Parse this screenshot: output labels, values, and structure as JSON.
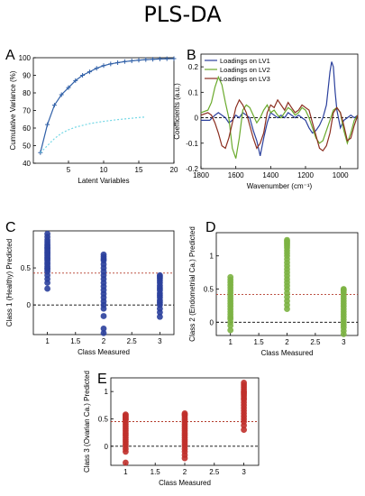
{
  "page_title": "PLS-DA",
  "chart_data": [
    {
      "panel": "A",
      "type": "line",
      "xlabel": "Latent Variables",
      "ylabel": "Cumulative Variance (%)",
      "xlim": [
        0,
        20
      ],
      "ylim": [
        40,
        100
      ],
      "xticks": [
        5,
        10,
        15,
        20
      ],
      "yticks": [
        40,
        50,
        60,
        70,
        80,
        90,
        100
      ],
      "grid": false,
      "series": [
        {
          "color": "#2f5fa7",
          "marker": "+",
          "x": [
            1,
            2,
            3,
            4,
            5,
            6,
            7,
            8,
            9,
            10,
            11,
            12,
            13,
            14,
            15,
            16,
            17,
            18,
            19,
            20
          ],
          "y": [
            46,
            62,
            73,
            79,
            83,
            87,
            90,
            92,
            94,
            95.5,
            96.5,
            97.2,
            97.8,
            98.2,
            98.6,
            98.9,
            99.1,
            99.3,
            99.4,
            99.5
          ]
        },
        {
          "color": "#74d8e6",
          "style": "dashed",
          "x": [
            1,
            2,
            3,
            4,
            5,
            6,
            7,
            8,
            9,
            10,
            11,
            12,
            13,
            14,
            15,
            16
          ],
          "y": [
            46,
            50,
            54,
            57,
            59,
            60.5,
            61.5,
            62.5,
            63.2,
            63.8,
            64.3,
            64.8,
            65.2,
            65.6,
            66,
            66.3
          ]
        }
      ]
    },
    {
      "panel": "B",
      "type": "line",
      "xlabel": "Wavenumber (cm⁻¹)",
      "ylabel": "Coefficients (a.u.)",
      "xlim": [
        1800,
        900
      ],
      "ylim": [
        -0.2,
        0.25
      ],
      "xticks": [
        1800,
        1600,
        1400,
        1200,
        1000
      ],
      "yticks": [
        -0.2,
        -0.1,
        0,
        0.1,
        0.2
      ],
      "legend_position": "top-left",
      "grid": false,
      "series": [
        {
          "name": "Loadings on LV1",
          "color": "#2a3f9c",
          "x": [
            1800,
            1750,
            1720,
            1700,
            1680,
            1660,
            1640,
            1620,
            1600,
            1580,
            1560,
            1540,
            1520,
            1500,
            1480,
            1460,
            1440,
            1420,
            1400,
            1380,
            1360,
            1340,
            1320,
            1300,
            1280,
            1260,
            1240,
            1220,
            1200,
            1180,
            1160,
            1140,
            1120,
            1100,
            1080,
            1060,
            1050,
            1040,
            1030,
            1020,
            1000,
            980,
            960,
            940,
            920,
            900
          ],
          "y": [
            -0.01,
            -0.01,
            0.01,
            0.02,
            0.01,
            0,
            -0.02,
            -0.01,
            0.01,
            0,
            0.02,
            0.01,
            0,
            -0.05,
            -0.09,
            -0.15,
            -0.08,
            -0.02,
            0.02,
            0.01,
            0,
            0.01,
            0,
            0.02,
            0.01,
            0,
            0.01,
            0,
            -0.01,
            -0.04,
            -0.06,
            -0.05,
            -0.03,
            0,
            0.05,
            0.18,
            0.22,
            0.2,
            0.1,
            0.03,
            -0.04,
            -0.01,
            0,
            0.01,
            0,
            0.01
          ]
        },
        {
          "name": "Loadings on LV2",
          "color": "#6aaa2c",
          "x": [
            1800,
            1760,
            1740,
            1720,
            1700,
            1680,
            1660,
            1640,
            1620,
            1600,
            1580,
            1560,
            1540,
            1520,
            1500,
            1480,
            1460,
            1440,
            1420,
            1400,
            1380,
            1360,
            1340,
            1320,
            1300,
            1280,
            1260,
            1240,
            1220,
            1200,
            1180,
            1160,
            1140,
            1120,
            1100,
            1080,
            1060,
            1040,
            1020,
            1000,
            980,
            960,
            940,
            920,
            900
          ],
          "y": [
            0.02,
            0.03,
            0.06,
            0.12,
            0.16,
            0.13,
            0.06,
            0,
            -0.12,
            -0.16,
            -0.08,
            0.03,
            0.05,
            0.04,
            0.01,
            -0.02,
            0,
            0.03,
            0.05,
            0.02,
            0.03,
            0.01,
            0,
            0.02,
            0.04,
            0.03,
            0.01,
            0.02,
            0.04,
            0.03,
            0,
            -0.04,
            -0.08,
            -0.1,
            -0.09,
            -0.05,
            -0.01,
            0.03,
            0.04,
            0.02,
            -0.05,
            -0.1,
            -0.06,
            -0.01,
            0.01
          ]
        },
        {
          "name": "Loadings on LV3",
          "color": "#8b2d1f",
          "x": [
            1800,
            1760,
            1740,
            1720,
            1700,
            1680,
            1660,
            1640,
            1620,
            1600,
            1580,
            1560,
            1540,
            1520,
            1500,
            1480,
            1460,
            1440,
            1420,
            1400,
            1380,
            1360,
            1340,
            1320,
            1300,
            1280,
            1260,
            1240,
            1220,
            1200,
            1180,
            1160,
            1140,
            1120,
            1100,
            1080,
            1060,
            1040,
            1020,
            1000,
            980,
            960,
            940,
            920,
            900
          ],
          "y": [
            0.01,
            0.02,
            0.01,
            -0.02,
            -0.06,
            -0.11,
            -0.12,
            -0.08,
            -0.02,
            0.04,
            0.07,
            0.05,
            0.02,
            -0.03,
            -0.08,
            -0.12,
            -0.1,
            -0.06,
            0.02,
            0.05,
            0.04,
            0.07,
            0.05,
            0.03,
            0.06,
            0.04,
            0.02,
            0.03,
            0.05,
            0.04,
            0.03,
            -0.02,
            -0.07,
            -0.12,
            -0.13,
            -0.11,
            -0.06,
            0.02,
            0.04,
            0.02,
            -0.03,
            -0.09,
            -0.08,
            -0.03,
            0.01
          ]
        }
      ]
    },
    {
      "panel": "C",
      "type": "scatter",
      "xlabel": "Class Measured",
      "ylabel": "Class 1 (Healthy) Predicted",
      "xlim": [
        0.75,
        3.25
      ],
      "ylim": [
        -0.4,
        1.0
      ],
      "xticks": [
        1,
        1.5,
        2,
        2.5,
        3
      ],
      "yticks": [
        0,
        0.5
      ],
      "threshold": 0.43,
      "grid": false,
      "series": [
        {
          "color": "#2a3f9c",
          "x": [
            1,
            1,
            1,
            1,
            1,
            1,
            1,
            1,
            1,
            1,
            1,
            1,
            1,
            1,
            1,
            1,
            1,
            1,
            1,
            1,
            1,
            1,
            1,
            1,
            1,
            1,
            2,
            2,
            2,
            2,
            2,
            2,
            2,
            2,
            2,
            2,
            2,
            2,
            2,
            2,
            2,
            2,
            2,
            2,
            2,
            2,
            3,
            3,
            3,
            3,
            3,
            3,
            3,
            3,
            3,
            3,
            3,
            3,
            3,
            3,
            3,
            3,
            3
          ],
          "y": [
            0.22,
            0.3,
            0.35,
            0.4,
            0.45,
            0.48,
            0.5,
            0.52,
            0.55,
            0.57,
            0.6,
            0.62,
            0.64,
            0.66,
            0.68,
            0.7,
            0.72,
            0.74,
            0.76,
            0.78,
            0.8,
            0.82,
            0.85,
            0.88,
            0.92,
            0.96,
            -0.38,
            -0.32,
            -0.15,
            -0.05,
            0,
            0.05,
            0.1,
            0.15,
            0.2,
            0.25,
            0.3,
            0.35,
            0.4,
            0.45,
            0.5,
            0.55,
            0.6,
            0.62,
            0.65,
            0.68,
            -0.16,
            -0.1,
            -0.05,
            0,
            0.03,
            0.06,
            0.1,
            0.13,
            0.16,
            0.2,
            0.23,
            0.26,
            0.3,
            0.33,
            0.36,
            0.38,
            0.4
          ]
        }
      ]
    },
    {
      "panel": "D",
      "type": "scatter",
      "xlabel": "Class Measured",
      "ylabel": "Class 2 (Endometrial Ca.) Predicted",
      "xlim": [
        0.75,
        3.25
      ],
      "ylim": [
        -0.2,
        1.35
      ],
      "xticks": [
        1,
        1.5,
        2,
        2.5,
        3
      ],
      "yticks": [
        0,
        0.5,
        1
      ],
      "threshold": 0.42,
      "grid": false,
      "series": [
        {
          "color": "#7cb342",
          "x": [
            1,
            1,
            1,
            1,
            1,
            1,
            1,
            1,
            1,
            1,
            1,
            1,
            1,
            1,
            1,
            1,
            1,
            1,
            1,
            1,
            2,
            2,
            2,
            2,
            2,
            2,
            2,
            2,
            2,
            2,
            2,
            2,
            2,
            2,
            2,
            2,
            2,
            2,
            2,
            2,
            2,
            2,
            2,
            2,
            3,
            3,
            3,
            3,
            3,
            3,
            3,
            3,
            3,
            3,
            3,
            3,
            3,
            3,
            3,
            3,
            3,
            3,
            3
          ],
          "y": [
            -0.12,
            -0.05,
            0,
            0.05,
            0.08,
            0.12,
            0.16,
            0.2,
            0.24,
            0.28,
            0.32,
            0.36,
            0.4,
            0.44,
            0.48,
            0.52,
            0.56,
            0.6,
            0.64,
            0.68,
            0.2,
            0.26,
            0.32,
            0.38,
            0.44,
            0.5,
            0.55,
            0.6,
            0.65,
            0.7,
            0.75,
            0.8,
            0.85,
            0.9,
            0.95,
            1.0,
            1.04,
            1.08,
            1.12,
            1.15,
            1.18,
            1.2,
            1.22,
            1.24,
            -0.18,
            -0.13,
            -0.08,
            -0.04,
            0,
            0.04,
            0.08,
            0.12,
            0.16,
            0.2,
            0.24,
            0.28,
            0.32,
            0.36,
            0.4,
            0.44,
            0.47,
            0.49,
            0.5
          ]
        }
      ]
    },
    {
      "panel": "E",
      "type": "scatter",
      "xlabel": "Class Measured",
      "ylabel": "Class 3 (Ovarian Ca.) Predicted",
      "xlim": [
        0.75,
        3.25
      ],
      "ylim": [
        -0.35,
        1.25
      ],
      "xticks": [
        1,
        1.5,
        2,
        2.5,
        3
      ],
      "yticks": [
        0,
        0.5,
        1
      ],
      "threshold": 0.45,
      "grid": false,
      "series": [
        {
          "color": "#c0302b",
          "x": [
            1,
            1,
            1,
            1,
            1,
            1,
            1,
            1,
            1,
            1,
            1,
            1,
            1,
            1,
            1,
            1,
            1,
            1,
            1,
            1,
            1,
            2,
            2,
            2,
            2,
            2,
            2,
            2,
            2,
            2,
            2,
            2,
            2,
            2,
            2,
            2,
            2,
            2,
            2,
            2,
            2,
            2,
            3,
            3,
            3,
            3,
            3,
            3,
            3,
            3,
            3,
            3,
            3,
            3,
            3,
            3,
            3,
            3,
            3,
            3,
            3,
            3
          ],
          "y": [
            -0.3,
            -0.1,
            -0.05,
            0,
            0.04,
            0.08,
            0.12,
            0.16,
            0.2,
            0.24,
            0.28,
            0.32,
            0.36,
            0.4,
            0.44,
            0.48,
            0.5,
            0.52,
            0.54,
            0.56,
            0.58,
            -0.22,
            -0.16,
            -0.1,
            -0.05,
            0,
            0.04,
            0.08,
            0.12,
            0.16,
            0.2,
            0.24,
            0.28,
            0.32,
            0.36,
            0.4,
            0.44,
            0.48,
            0.52,
            0.56,
            0.58,
            0.6,
            0.3,
            0.38,
            0.45,
            0.5,
            0.55,
            0.6,
            0.65,
            0.7,
            0.75,
            0.8,
            0.85,
            0.88,
            0.92,
            0.95,
            0.98,
            1.0,
            1.04,
            1.08,
            1.12,
            1.16
          ]
        }
      ]
    }
  ]
}
